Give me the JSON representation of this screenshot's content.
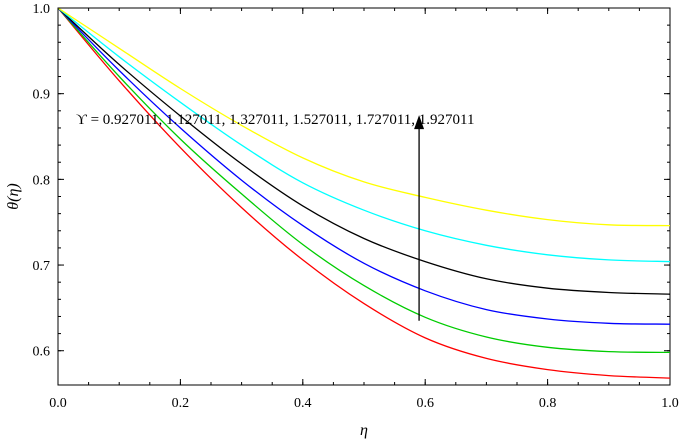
{
  "chart_data": {
    "type": "line",
    "xlabel": "η",
    "ylabel": "θ(η)",
    "xlim": [
      0.0,
      1.0
    ],
    "ylim": [
      0.56,
      1.0
    ],
    "xticks": [
      0.0,
      0.2,
      0.4,
      0.6,
      0.8,
      1.0
    ],
    "xtick_labels": [
      "0.0",
      "0.2",
      "0.4",
      "0.6",
      "0.8",
      "1.0"
    ],
    "yticks": [
      0.6,
      0.7,
      0.8,
      0.9,
      1.0
    ],
    "ytick_labels": [
      "0.6",
      "0.7",
      "0.8",
      "0.9",
      "1.0"
    ],
    "grid": false,
    "x": [
      0.0,
      0.1,
      0.2,
      0.3,
      0.4,
      0.5,
      0.6,
      0.7,
      0.8,
      0.9,
      1.0
    ],
    "series": [
      {
        "color": "#ff0000",
        "values": [
          1.0,
          0.915,
          0.837,
          0.767,
          0.706,
          0.655,
          0.615,
          0.591,
          0.578,
          0.571,
          0.568
        ]
      },
      {
        "color": "#00cc00",
        "values": [
          1.0,
          0.92,
          0.847,
          0.783,
          0.724,
          0.676,
          0.639,
          0.616,
          0.604,
          0.599,
          0.598
        ]
      },
      {
        "color": "#0000ff",
        "values": [
          1.0,
          0.927,
          0.86,
          0.799,
          0.746,
          0.702,
          0.67,
          0.648,
          0.637,
          0.632,
          0.631
        ]
      },
      {
        "color": "#000000",
        "values": [
          1.0,
          0.934,
          0.874,
          0.818,
          0.769,
          0.731,
          0.704,
          0.684,
          0.673,
          0.668,
          0.666
        ]
      },
      {
        "color": "#00ffff",
        "values": [
          1.0,
          0.943,
          0.89,
          0.84,
          0.796,
          0.764,
          0.74,
          0.723,
          0.712,
          0.706,
          0.704
        ]
      },
      {
        "color": "#ffff00",
        "values": [
          1.0,
          0.953,
          0.906,
          0.863,
          0.825,
          0.797,
          0.779,
          0.764,
          0.753,
          0.747,
          0.746
        ]
      }
    ],
    "annotation": {
      "text": "ϒ = 0.927011, 1.127011, 1.327011, 1.527011, 1.727011, 1.927011",
      "arrow": {
        "x": 0.59,
        "y_from": 0.635,
        "y_to": 0.875,
        "direction": "up"
      }
    }
  }
}
